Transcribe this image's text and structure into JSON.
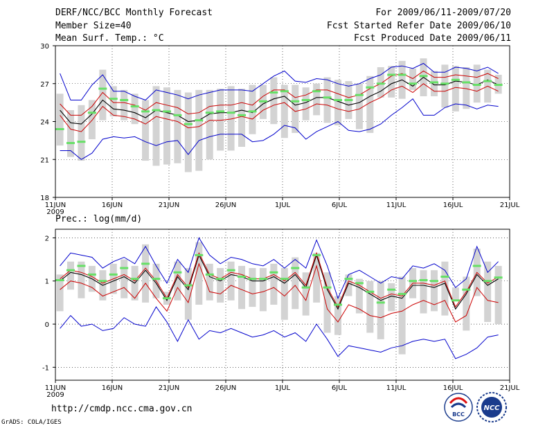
{
  "header": {
    "title": "DERF/NCC/BCC Monthly Forecast",
    "member_size": "Member Size=40",
    "variable": "Mean Surf. Temp.: °C",
    "period": "For 2009/06/11-2009/07/20",
    "start_date": "Fcst Started Refer Date 2009/06/10",
    "produced_date": "Fcst Produced Date 2009/06/11"
  },
  "footer": {
    "url": "http://cmdp.ncc.cma.gov.cn",
    "credit": "GrADS: COLA/IGES",
    "logo_bcc": "BCC",
    "logo_ncc": "NCC"
  },
  "colors": {
    "member_bar": "#d3d3d3",
    "median_mark": "#66e066",
    "mean_line": "#000000",
    "spread_line": "#cc0000",
    "extreme_line": "#0000cc"
  },
  "chart_data": [
    {
      "type": "line",
      "title": "Mean Surf. Temp.: °C",
      "unit": "°C",
      "xlabel": "",
      "ylabel": "",
      "ylim": [
        18,
        30
      ],
      "yticks": [
        18,
        21,
        24,
        27,
        30
      ],
      "xlim": [
        0,
        40
      ],
      "x_tick_positions": [
        0,
        5,
        10,
        15,
        20,
        25,
        30,
        35,
        40
      ],
      "x_tick_labels": [
        "11JUN",
        "16JUN",
        "21JUN",
        "26JUN",
        "1JUL",
        "6JUL",
        "11JUL",
        "16JUL",
        "21JUL"
      ],
      "year_label": "2009",
      "grid": true,
      "series": [
        {
          "name": "ensemble mean",
          "role": "mean",
          "values": [
            24.9,
            23.9,
            23.8,
            24.6,
            25.7,
            25.0,
            24.9,
            24.7,
            24.3,
            24.9,
            24.7,
            24.5,
            24.0,
            24.1,
            24.6,
            24.7,
            24.7,
            24.9,
            24.7,
            25.4,
            25.8,
            26.0,
            25.3,
            25.5,
            25.9,
            25.9,
            25.6,
            25.3,
            25.5,
            26.0,
            26.4,
            27.0,
            27.3,
            26.8,
            27.5,
            26.9,
            26.9,
            27.2,
            27.1,
            26.9,
            27.3,
            26.9
          ]
        },
        {
          "name": "mean + spread",
          "role": "upper",
          "values": [
            25.4,
            24.5,
            24.5,
            25.2,
            26.3,
            25.5,
            25.5,
            25.3,
            24.9,
            25.5,
            25.3,
            25.1,
            24.6,
            24.7,
            25.2,
            25.3,
            25.3,
            25.5,
            25.3,
            26.0,
            26.5,
            26.5,
            25.9,
            26.1,
            26.5,
            26.5,
            26.2,
            25.9,
            26.1,
            26.6,
            27.0,
            27.6,
            27.8,
            27.4,
            28.0,
            27.5,
            27.5,
            27.7,
            27.6,
            27.5,
            27.8,
            27.4
          ]
        },
        {
          "name": "mean - spread",
          "role": "lower",
          "values": [
            24.5,
            23.4,
            23.2,
            24.1,
            25.2,
            24.5,
            24.4,
            24.2,
            23.8,
            24.4,
            24.2,
            24.0,
            23.5,
            23.6,
            24.1,
            24.1,
            24.2,
            24.4,
            24.2,
            24.9,
            25.3,
            25.5,
            24.8,
            25.0,
            25.4,
            25.3,
            25.0,
            24.8,
            25.0,
            25.5,
            25.9,
            26.5,
            26.8,
            26.3,
            27.0,
            26.4,
            26.4,
            26.7,
            26.6,
            26.4,
            26.8,
            26.4
          ]
        },
        {
          "name": "ensemble max",
          "role": "max",
          "values": [
            27.8,
            25.7,
            25.7,
            26.9,
            27.7,
            26.4,
            26.4,
            26.0,
            25.7,
            26.5,
            26.3,
            26.1,
            25.8,
            26.1,
            26.3,
            26.5,
            26.5,
            26.5,
            26.4,
            27.0,
            27.6,
            28.0,
            27.2,
            27.1,
            27.4,
            27.3,
            27.0,
            26.8,
            27.0,
            27.4,
            27.7,
            28.3,
            28.4,
            28.2,
            28.6,
            27.9,
            27.9,
            28.3,
            28.2,
            28.0,
            28.3,
            27.8
          ]
        },
        {
          "name": "ensemble min",
          "role": "min",
          "values": [
            21.7,
            21.7,
            21.0,
            21.5,
            22.6,
            22.8,
            22.7,
            22.8,
            22.4,
            22.1,
            22.4,
            22.5,
            21.4,
            22.5,
            22.8,
            23.0,
            23.0,
            23.0,
            22.4,
            22.5,
            23.0,
            23.7,
            23.5,
            22.6,
            23.2,
            23.6,
            24.0,
            23.3,
            23.2,
            23.4,
            23.8,
            24.5,
            25.1,
            25.8,
            24.5,
            24.5,
            25.1,
            25.4,
            25.3,
            25.0,
            25.3,
            25.2
          ]
        },
        {
          "name": "ensemble median",
          "role": "median",
          "values": [
            23.4,
            22.3,
            22.4,
            24.7,
            26.6,
            25.8,
            25.7,
            25.2,
            24.8,
            24.9,
            24.8,
            24.5,
            23.8,
            24.1,
            24.7,
            24.8,
            24.7,
            24.5,
            24.8,
            25.6,
            26.3,
            26.4,
            25.6,
            25.7,
            26.4,
            25.9,
            25.7,
            25.7,
            26.1,
            26.7,
            27.0,
            27.7,
            27.7,
            27.0,
            27.6,
            27.1,
            27.0,
            27.3,
            27.1,
            26.9,
            27.2,
            26.9
          ]
        }
      ],
      "member_range": {
        "lows": [
          22.1,
          21.2,
          20.9,
          22.6,
          24.1,
          24.4,
          24.1,
          23.8,
          20.9,
          20.5,
          20.6,
          20.7,
          20.0,
          20.1,
          21.0,
          21.7,
          21.7,
          22.0,
          23.0,
          24.2,
          23.8,
          22.7,
          23.1,
          24.1,
          24.5,
          23.9,
          23.7,
          24.2,
          23.4,
          23.1,
          25.9,
          25.9,
          25.8,
          26.5,
          26.0,
          26.0,
          25.1,
          24.8,
          25.0,
          25.5,
          25.5,
          26.2
        ],
        "highs": [
          26.2,
          24.9,
          25.3,
          25.7,
          28.1,
          26.8,
          26.5,
          26.2,
          25.7,
          26.8,
          26.7,
          26.5,
          26.3,
          26.5,
          26.5,
          26.6,
          26.8,
          26.6,
          26.9,
          26.9,
          27.5,
          26.9,
          26.9,
          26.7,
          27.0,
          27.5,
          27.3,
          27.2,
          27.0,
          27.6,
          28.3,
          28.4,
          28.8,
          28.2,
          29.0,
          28.0,
          28.5,
          28.4,
          28.3,
          28.5,
          28.1,
          27.7
        ]
      }
    },
    {
      "type": "line",
      "title": "Prec.: log(mm/d)",
      "unit": "log(mm/d)",
      "xlabel": "",
      "ylabel": "",
      "ylim": [
        -1.3,
        2.2
      ],
      "yticks": [
        -1,
        0,
        1,
        2
      ],
      "xlim": [
        0,
        40
      ],
      "x_tick_positions": [
        0,
        5,
        10,
        15,
        20,
        25,
        30,
        35,
        40
      ],
      "x_tick_labels": [
        "11JUN",
        "16JUN",
        "21JUN",
        "26JUN",
        "1JUL",
        "6JUL",
        "11JUL",
        "16JUL",
        "21JUL"
      ],
      "year_label": "2009",
      "grid": true,
      "series": [
        {
          "name": "ensemble mean",
          "role": "mean",
          "values": [
            1.0,
            1.2,
            1.15,
            1.05,
            0.9,
            1.0,
            1.1,
            0.95,
            1.25,
            0.95,
            0.55,
            1.1,
            0.8,
            1.6,
            1.1,
            1.0,
            1.15,
            1.1,
            1.0,
            1.0,
            1.1,
            0.95,
            1.15,
            0.85,
            1.6,
            0.8,
            0.35,
            0.95,
            0.85,
            0.7,
            0.55,
            0.65,
            0.6,
            0.9,
            0.9,
            0.85,
            0.95,
            0.35,
            0.7,
            1.15,
            0.9,
            1.05
          ]
        },
        {
          "name": "mean + spread",
          "role": "upper",
          "values": [
            1.05,
            1.25,
            1.2,
            1.1,
            0.95,
            1.05,
            1.15,
            1.0,
            1.3,
            1.0,
            0.6,
            1.15,
            0.85,
            1.65,
            1.15,
            1.05,
            1.2,
            1.15,
            1.05,
            1.05,
            1.15,
            1.0,
            1.2,
            0.9,
            1.65,
            0.85,
            0.4,
            1.0,
            0.9,
            0.75,
            0.6,
            0.7,
            0.65,
            0.95,
            0.95,
            0.9,
            1.0,
            0.4,
            0.75,
            1.2,
            0.95,
            1.1
          ]
        },
        {
          "name": "mean - spread",
          "role": "lower",
          "values": [
            0.8,
            1.0,
            0.95,
            0.85,
            0.65,
            0.75,
            0.85,
            0.6,
            0.95,
            0.6,
            0.3,
            0.85,
            0.5,
            1.4,
            0.75,
            0.7,
            0.9,
            0.8,
            0.7,
            0.75,
            0.85,
            0.65,
            0.9,
            0.55,
            1.35,
            0.35,
            0.05,
            0.45,
            0.35,
            0.2,
            0.15,
            0.25,
            0.3,
            0.45,
            0.55,
            0.45,
            0.55,
            0.05,
            0.2,
            0.85,
            0.55,
            0.5
          ]
        },
        {
          "name": "ensemble max",
          "role": "max",
          "values": [
            1.35,
            1.65,
            1.6,
            1.55,
            1.3,
            1.45,
            1.55,
            1.4,
            1.8,
            1.35,
            0.95,
            1.5,
            1.2,
            2.0,
            1.6,
            1.4,
            1.55,
            1.5,
            1.4,
            1.35,
            1.5,
            1.3,
            1.5,
            1.3,
            1.95,
            1.35,
            0.6,
            1.15,
            1.25,
            1.1,
            0.95,
            1.1,
            1.05,
            1.35,
            1.3,
            1.4,
            1.25,
            0.85,
            1.05,
            1.8,
            1.2,
            1.45
          ]
        },
        {
          "name": "ensemble min",
          "role": "min",
          "values": [
            -0.1,
            0.2,
            -0.05,
            0.0,
            -0.15,
            -0.1,
            0.15,
            0.0,
            -0.05,
            0.4,
            0.05,
            -0.4,
            0.1,
            -0.35,
            -0.15,
            -0.2,
            -0.1,
            -0.2,
            -0.3,
            -0.25,
            -0.15,
            -0.3,
            -0.2,
            -0.4,
            0.0,
            -0.35,
            -0.75,
            -0.5,
            -0.55,
            -0.6,
            -0.65,
            -0.55,
            -0.5,
            -0.4,
            -0.35,
            -0.4,
            -0.35,
            -0.8,
            -0.7,
            -0.55,
            -0.3,
            -0.25
          ]
        },
        {
          "name": "ensemble median",
          "role": "median",
          "values": [
            1.02,
            1.25,
            1.35,
            1.15,
            1.0,
            1.15,
            1.3,
            1.05,
            1.4,
            1.05,
            0.6,
            1.2,
            0.9,
            1.6,
            1.15,
            1.05,
            1.25,
            1.1,
            1.05,
            1.05,
            1.2,
            1.05,
            1.3,
            0.85,
            1.6,
            0.85,
            0.45,
            1.05,
            0.95,
            0.75,
            0.5,
            0.8,
            0.7,
            1.0,
            1.02,
            1.0,
            1.1,
            0.55,
            0.8,
            1.35,
            1.0,
            1.08
          ]
        }
      ],
      "member_range": {
        "lows": [
          0.3,
          0.8,
          0.6,
          0.75,
          0.55,
          0.7,
          0.6,
          0.55,
          0.5,
          0.6,
          0.45,
          0.55,
          0.1,
          0.45,
          0.55,
          0.5,
          0.55,
          0.35,
          0.4,
          0.3,
          0.45,
          0.1,
          0.35,
          0.2,
          0.5,
          -0.2,
          -0.25,
          0.65,
          0.25,
          -0.2,
          -0.35,
          0.3,
          -0.7,
          0.6,
          0.25,
          0.3,
          0.2,
          0.55,
          -0.15,
          0.65,
          0.05,
          0.0
        ],
        "highs": [
          1.15,
          1.45,
          1.45,
          1.35,
          1.25,
          1.4,
          1.5,
          1.35,
          1.85,
          1.4,
          0.75,
          1.45,
          1.3,
          1.9,
          1.4,
          1.3,
          1.45,
          1.35,
          1.3,
          1.3,
          1.4,
          1.3,
          1.55,
          1.2,
          1.65,
          1.2,
          0.65,
          1.15,
          1.05,
          1.0,
          1.0,
          0.95,
          1.1,
          1.3,
          1.25,
          1.25,
          1.45,
          0.85,
          1.1,
          1.75,
          1.45,
          1.35
        ]
      }
    }
  ]
}
